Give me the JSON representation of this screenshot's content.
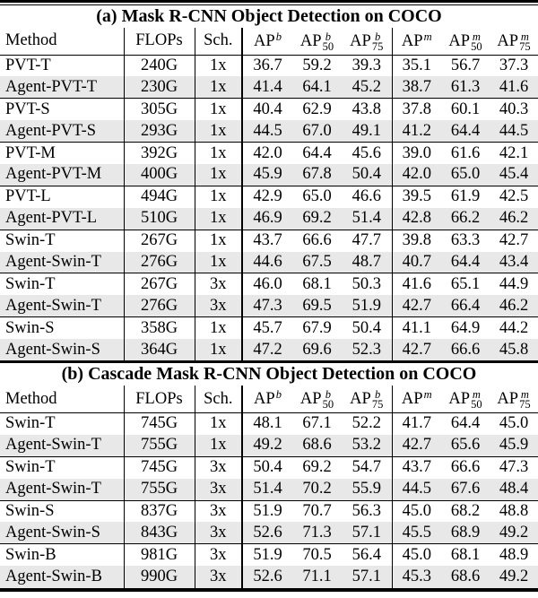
{
  "colors": {
    "background": "#ffffff",
    "text": "#000000",
    "rule": "#000000",
    "shaded_row": "#e8e8e8"
  },
  "tables": [
    {
      "title": "(a) Mask R-CNN Object Detection on COCO",
      "columns": {
        "method": "Method",
        "flops": "FLOPs",
        "sch": "Sch."
      },
      "ap_headers": [
        {
          "base": "AP",
          "sup": "b",
          "sub": ""
        },
        {
          "base": "AP",
          "sup": "b",
          "sub": "50"
        },
        {
          "base": "AP",
          "sup": "b",
          "sub": "75"
        },
        {
          "base": "AP",
          "sup": "m",
          "sub": ""
        },
        {
          "base": "AP",
          "sup": "m",
          "sub": "50"
        },
        {
          "base": "AP",
          "sup": "m",
          "sub": "75"
        }
      ],
      "rows": [
        {
          "method": "PVT-T",
          "flops": "240G",
          "sch": "1x",
          "values": [
            "36.7",
            "59.2",
            "39.3",
            "35.1",
            "56.7",
            "37.3"
          ],
          "shaded": false
        },
        {
          "method": "Agent-PVT-T",
          "flops": "230G",
          "sch": "1x",
          "values": [
            "41.4",
            "64.1",
            "45.2",
            "38.7",
            "61.3",
            "41.6"
          ],
          "shaded": true
        },
        {
          "method": "PVT-S",
          "flops": "305G",
          "sch": "1x",
          "values": [
            "40.4",
            "62.9",
            "43.8",
            "37.8",
            "60.1",
            "40.3"
          ],
          "shaded": false
        },
        {
          "method": "Agent-PVT-S",
          "flops": "293G",
          "sch": "1x",
          "values": [
            "44.5",
            "67.0",
            "49.1",
            "41.2",
            "64.4",
            "44.5"
          ],
          "shaded": true
        },
        {
          "method": "PVT-M",
          "flops": "392G",
          "sch": "1x",
          "values": [
            "42.0",
            "64.4",
            "45.6",
            "39.0",
            "61.6",
            "42.1"
          ],
          "shaded": false
        },
        {
          "method": "Agent-PVT-M",
          "flops": "400G",
          "sch": "1x",
          "values": [
            "45.9",
            "67.8",
            "50.4",
            "42.0",
            "65.0",
            "45.4"
          ],
          "shaded": true
        },
        {
          "method": "PVT-L",
          "flops": "494G",
          "sch": "1x",
          "values": [
            "42.9",
            "65.0",
            "46.6",
            "39.5",
            "61.9",
            "42.5"
          ],
          "shaded": false
        },
        {
          "method": "Agent-PVT-L",
          "flops": "510G",
          "sch": "1x",
          "values": [
            "46.9",
            "69.2",
            "51.4",
            "42.8",
            "66.2",
            "46.2"
          ],
          "shaded": true
        },
        {
          "method": "Swin-T",
          "flops": "267G",
          "sch": "1x",
          "values": [
            "43.7",
            "66.6",
            "47.7",
            "39.8",
            "63.3",
            "42.7"
          ],
          "shaded": false
        },
        {
          "method": "Agent-Swin-T",
          "flops": "276G",
          "sch": "1x",
          "values": [
            "44.6",
            "67.5",
            "48.7",
            "40.7",
            "64.4",
            "43.4"
          ],
          "shaded": true
        },
        {
          "method": "Swin-T",
          "flops": "267G",
          "sch": "3x",
          "values": [
            "46.0",
            "68.1",
            "50.3",
            "41.6",
            "65.1",
            "44.9"
          ],
          "shaded": false
        },
        {
          "method": "Agent-Swin-T",
          "flops": "276G",
          "sch": "3x",
          "values": [
            "47.3",
            "69.5",
            "51.9",
            "42.7",
            "66.4",
            "46.2"
          ],
          "shaded": true
        },
        {
          "method": "Swin-S",
          "flops": "358G",
          "sch": "1x",
          "values": [
            "45.7",
            "67.9",
            "50.4",
            "41.1",
            "64.9",
            "44.2"
          ],
          "shaded": false
        },
        {
          "method": "Agent-Swin-S",
          "flops": "364G",
          "sch": "1x",
          "values": [
            "47.2",
            "69.6",
            "52.3",
            "42.7",
            "66.6",
            "45.8"
          ],
          "shaded": true
        }
      ]
    },
    {
      "title": "(b) Cascade Mask R-CNN Object Detection on COCO",
      "columns": {
        "method": "Method",
        "flops": "FLOPs",
        "sch": "Sch."
      },
      "ap_headers": [
        {
          "base": "AP",
          "sup": "b",
          "sub": ""
        },
        {
          "base": "AP",
          "sup": "b",
          "sub": "50"
        },
        {
          "base": "AP",
          "sup": "b",
          "sub": "75"
        },
        {
          "base": "AP",
          "sup": "m",
          "sub": ""
        },
        {
          "base": "AP",
          "sup": "m",
          "sub": "50"
        },
        {
          "base": "AP",
          "sup": "m",
          "sub": "75"
        }
      ],
      "rows": [
        {
          "method": "Swin-T",
          "flops": "745G",
          "sch": "1x",
          "values": [
            "48.1",
            "67.1",
            "52.2",
            "41.7",
            "64.4",
            "45.0"
          ],
          "shaded": false
        },
        {
          "method": "Agent-Swin-T",
          "flops": "755G",
          "sch": "1x",
          "values": [
            "49.2",
            "68.6",
            "53.2",
            "42.7",
            "65.6",
            "45.9"
          ],
          "shaded": true
        },
        {
          "method": "Swin-T",
          "flops": "745G",
          "sch": "3x",
          "values": [
            "50.4",
            "69.2",
            "54.7",
            "43.7",
            "66.6",
            "47.3"
          ],
          "shaded": false
        },
        {
          "method": "Agent-Swin-T",
          "flops": "755G",
          "sch": "3x",
          "values": [
            "51.4",
            "70.2",
            "55.9",
            "44.5",
            "67.6",
            "48.4"
          ],
          "shaded": true
        },
        {
          "method": "Swin-S",
          "flops": "837G",
          "sch": "3x",
          "values": [
            "51.9",
            "70.7",
            "56.3",
            "45.0",
            "68.2",
            "48.8"
          ],
          "shaded": false
        },
        {
          "method": "Agent-Swin-S",
          "flops": "843G",
          "sch": "3x",
          "values": [
            "52.6",
            "71.3",
            "57.1",
            "45.5",
            "68.9",
            "49.2"
          ],
          "shaded": true
        },
        {
          "method": "Swin-B",
          "flops": "981G",
          "sch": "3x",
          "values": [
            "51.9",
            "70.5",
            "56.4",
            "45.0",
            "68.1",
            "48.9"
          ],
          "shaded": false
        },
        {
          "method": "Agent-Swin-B",
          "flops": "990G",
          "sch": "3x",
          "values": [
            "52.6",
            "71.1",
            "57.1",
            "45.3",
            "68.6",
            "49.2"
          ],
          "shaded": true
        }
      ]
    }
  ]
}
